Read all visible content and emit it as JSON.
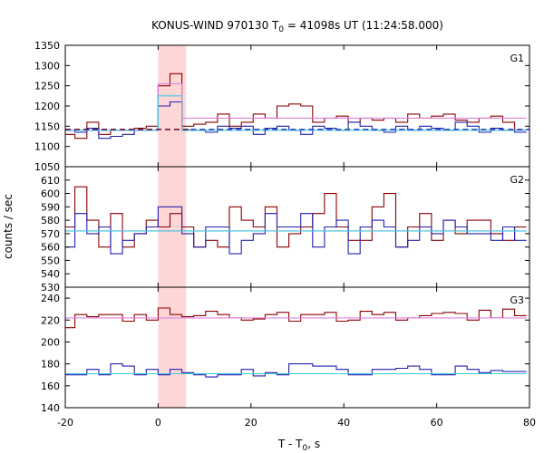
{
  "chart_data": {
    "type": "line",
    "title": "KONUS-WIND 970130 T",
    "title_sub": "0",
    "title_tail": " = 41098s UT (11:24:58.000)",
    "xlabel": "T - T",
    "xlabel_sub": "0",
    "xlabel_tail": ", s",
    "ylabel": "counts / sec",
    "xlim": [
      -20,
      80
    ],
    "xticks": [
      -20,
      0,
      20,
      40,
      60,
      80
    ],
    "highlight": {
      "x0": 0,
      "x1": 6,
      "color": "#ffd6d6"
    },
    "colors": {
      "dark_red": "#8b0000",
      "blue": "#2020b0",
      "pink": "#e080e0",
      "cyan": "#40c8e0",
      "dashed_dark": "#600030",
      "dashed_blue": "#2040c0"
    },
    "bin_edges": [
      -20.48,
      -17.92,
      -15.36,
      -12.8,
      -10.24,
      -7.68,
      -5.12,
      -2.56,
      0.0,
      2.56,
      5.12,
      7.68,
      10.24,
      12.8,
      15.36,
      17.92,
      20.48,
      23.04,
      25.6,
      28.16,
      30.72,
      33.28,
      35.84,
      38.4,
      40.96,
      43.52,
      46.08,
      48.64,
      51.2,
      53.76,
      56.32,
      58.88,
      61.44,
      64.0,
      66.56,
      69.12,
      71.68,
      74.24,
      76.8,
      79.36
    ],
    "panels": [
      {
        "label": "G1",
        "ylim": [
          1050,
          1350
        ],
        "yticks": [
          1050,
          1100,
          1150,
          1200,
          1250,
          1300,
          1350
        ],
        "series": [
          {
            "color": "#8b0000",
            "values": [
              1130,
              1120,
              1160,
              1130,
              1140,
              1140,
              1145,
              1150,
              1250,
              1280,
              1150,
              1155,
              1160,
              1180,
              1150,
              1160,
              1180,
              1170,
              1200,
              1205,
              1200,
              1160,
              1170,
              1175,
              1160,
              1170,
              1165,
              1170,
              1160,
              1180,
              1170,
              1175,
              1180,
              1165,
              1160,
              1170,
              1175,
              1160,
              1140
            ]
          },
          {
            "color": "#2020b0",
            "values": [
              1140,
              1135,
              1145,
              1120,
              1125,
              1130,
              1140,
              1140,
              1200,
              1210,
              1140,
              1140,
              1135,
              1150,
              1145,
              1150,
              1130,
              1145,
              1150,
              1140,
              1130,
              1150,
              1145,
              1140,
              1160,
              1150,
              1140,
              1135,
              1150,
              1140,
              1150,
              1145,
              1140,
              1160,
              1150,
              1135,
              1145,
              1140,
              1135
            ]
          },
          {
            "color": "#e080e0",
            "values": [
              1140,
              1140,
              1140,
              1140,
              1140,
              1140,
              1140,
              1140,
              1255,
              1255,
              1170,
              1170,
              1170,
              1170,
              1170,
              1170,
              1170,
              1170,
              1170,
              1170,
              1170,
              1170,
              1170,
              1170,
              1170,
              1170,
              1170,
              1170,
              1170,
              1170,
              1170,
              1170,
              1170,
              1170,
              1170,
              1170,
              1170,
              1170,
              1170
            ]
          },
          {
            "color": "#40c8e0",
            "values": [
              1140,
              1140,
              1140,
              1140,
              1140,
              1140,
              1140,
              1140,
              1225,
              1225,
              1140,
              1140,
              1140,
              1140,
              1140,
              1140,
              1140,
              1140,
              1140,
              1140,
              1140,
              1140,
              1140,
              1140,
              1140,
              1140,
              1140,
              1140,
              1140,
              1140,
              1140,
              1140,
              1140,
              1140,
              1140,
              1140,
              1140,
              1140,
              1140
            ]
          }
        ],
        "dashed": [
          {
            "color": "#600030",
            "x0": -20,
            "x1": 7,
            "value": 1142
          },
          {
            "color": "#2040c0",
            "x0": 7,
            "x1": 80,
            "value": 1142
          }
        ]
      },
      {
        "label": "G2",
        "ylim": [
          530,
          620
        ],
        "yticks": [
          530,
          540,
          550,
          560,
          570,
          580,
          590,
          600,
          610
        ],
        "series": [
          {
            "color": "#8b0000",
            "values": [
              575,
              605,
              580,
              560,
              585,
              560,
              570,
              580,
              575,
              585,
              575,
              560,
              565,
              560,
              590,
              580,
              575,
              590,
              560,
              570,
              575,
              585,
              600,
              575,
              565,
              565,
              590,
              600,
              560,
              575,
              585,
              565,
              580,
              570,
              580,
              580,
              570,
              565,
              575
            ]
          },
          {
            "color": "#2020b0",
            "values": [
              560,
              585,
              570,
              575,
              555,
              565,
              570,
              575,
              590,
              590,
              570,
              560,
              575,
              575,
              555,
              565,
              570,
              585,
              575,
              575,
              585,
              560,
              575,
              580,
              555,
              575,
              580,
              575,
              560,
              565,
              575,
              570,
              580,
              575,
              570,
              570,
              565,
              575,
              565
            ]
          },
          {
            "color": "#e080e0",
            "values": [
              572,
              572,
              572,
              572,
              572,
              572,
              572,
              572,
              572,
              572,
              572,
              572,
              572,
              572,
              572,
              572,
              572,
              572,
              572,
              572,
              572,
              572,
              572,
              572,
              572,
              572,
              572,
              572,
              572,
              572,
              572,
              572,
              572,
              572,
              572,
              572,
              572,
              572,
              572
            ]
          },
          {
            "color": "#40c8e0",
            "values": [
              572,
              572,
              572,
              572,
              572,
              572,
              572,
              572,
              572,
              572,
              572,
              572,
              572,
              572,
              572,
              572,
              572,
              572,
              572,
              572,
              572,
              572,
              572,
              572,
              572,
              572,
              572,
              572,
              572,
              572,
              572,
              572,
              572,
              572,
              572,
              572,
              572,
              572,
              572
            ]
          }
        ],
        "dashed": []
      },
      {
        "label": "G3",
        "ylim": [
          140,
          250
        ],
        "yticks": [
          140,
          160,
          180,
          200,
          220,
          240
        ],
        "series": [
          {
            "color": "#8b0000",
            "values": [
              213,
              225,
              223,
              225,
              225,
              219,
              225,
              220,
              231,
              225,
              223,
              224,
              228,
              225,
              222,
              220,
              221,
              225,
              227,
              219,
              225,
              225,
              227,
              219,
              220,
              228,
              225,
              227,
              220,
              222,
              224,
              226,
              227,
              226,
              220,
              229,
              222,
              230,
              224
            ]
          },
          {
            "color": "#2020b0",
            "values": [
              170,
              170,
              175,
              170,
              180,
              178,
              170,
              175,
              170,
              175,
              172,
              170,
              168,
              170,
              170,
              175,
              169,
              172,
              170,
              180,
              180,
              178,
              178,
              175,
              170,
              170,
              175,
              175,
              176,
              178,
              175,
              170,
              170,
              178,
              175,
              172,
              174,
              173,
              173
            ]
          },
          {
            "color": "#e080e0",
            "values": [
              222,
              222,
              222,
              222,
              222,
              222,
              222,
              222,
              222,
              222,
              222,
              222,
              222,
              222,
              222,
              222,
              222,
              222,
              222,
              222,
              222,
              222,
              222,
              222,
              222,
              222,
              222,
              222,
              222,
              222,
              222,
              222,
              222,
              222,
              222,
              222,
              222,
              222,
              222
            ]
          },
          {
            "color": "#40c8e0",
            "values": [
              171,
              171,
              171,
              171,
              171,
              171,
              171,
              171,
              171,
              171,
              171,
              171,
              171,
              171,
              171,
              171,
              171,
              171,
              171,
              171,
              171,
              171,
              171,
              171,
              171,
              171,
              171,
              171,
              171,
              171,
              171,
              171,
              171,
              171,
              171,
              171,
              171,
              171,
              171
            ]
          }
        ],
        "dashed": []
      }
    ]
  }
}
